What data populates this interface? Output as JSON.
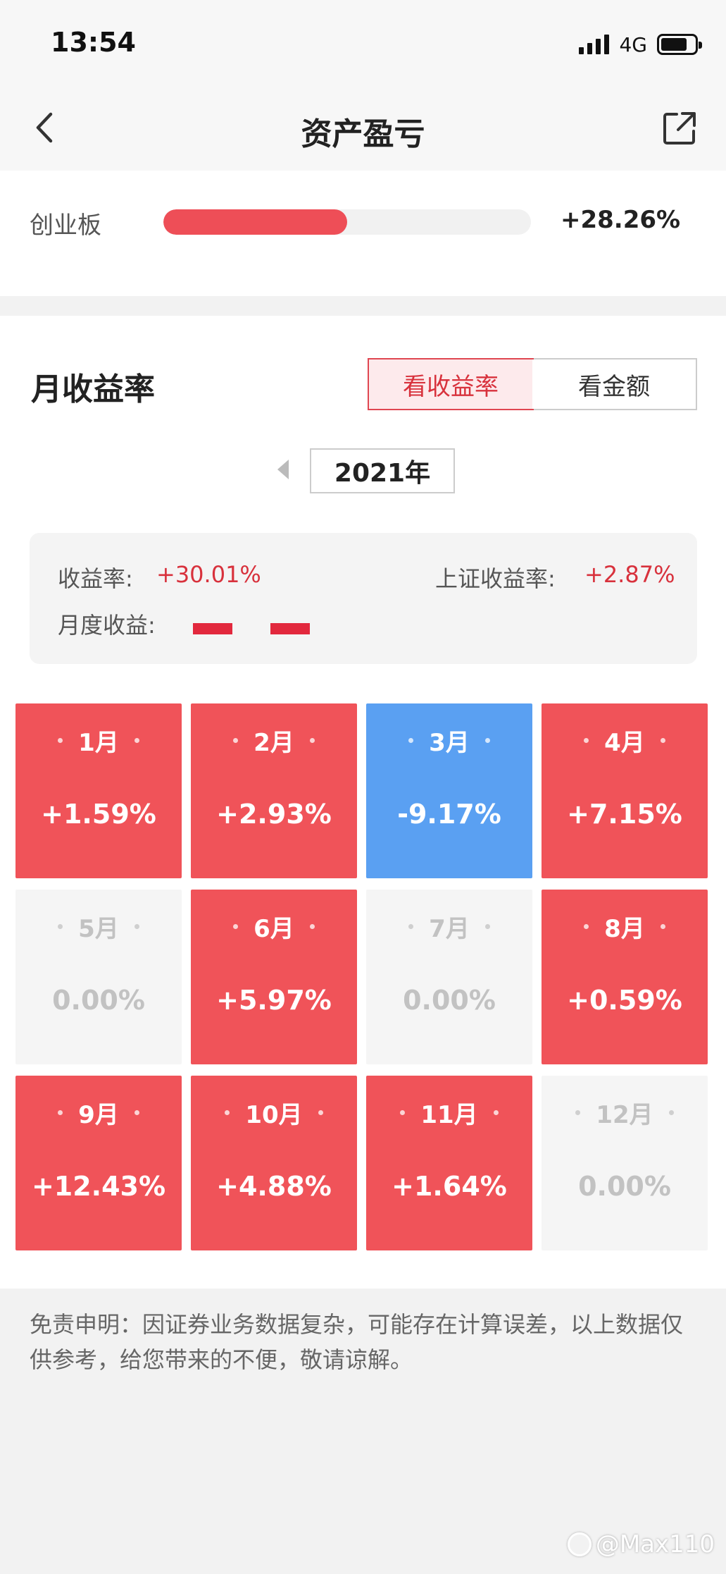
{
  "status": {
    "time": "13:54",
    "network": "4G"
  },
  "nav": {
    "title": "资产盈亏",
    "back_icon": "chevron-left-icon",
    "share_icon": "share-icon"
  },
  "index_compare": {
    "name": "创业板",
    "value": "+28.26%",
    "fill_fraction": 0.5
  },
  "monthly": {
    "title": "月收益率",
    "toggle": [
      {
        "label": "看收益率",
        "active": true
      },
      {
        "label": "看金额",
        "active": false
      }
    ],
    "year": "2021年",
    "summary": {
      "return_label": "收益率:",
      "return_value": "+30.01%",
      "sh_label": "上证收益率:",
      "sh_value": "+2.87%",
      "monthly_label": "月度收益:"
    },
    "months": [
      {
        "label": "1月",
        "value": "+1.59%",
        "state": "up"
      },
      {
        "label": "2月",
        "value": "+2.93%",
        "state": "up"
      },
      {
        "label": "3月",
        "value": "-9.17%",
        "state": "down"
      },
      {
        "label": "4月",
        "value": "+7.15%",
        "state": "up"
      },
      {
        "label": "5月",
        "value": "0.00%",
        "state": "flat"
      },
      {
        "label": "6月",
        "value": "+5.97%",
        "state": "up"
      },
      {
        "label": "7月",
        "value": "0.00%",
        "state": "flat"
      },
      {
        "label": "8月",
        "value": "+0.59%",
        "state": "up"
      },
      {
        "label": "9月",
        "value": "+12.43%",
        "state": "up"
      },
      {
        "label": "10月",
        "value": "+4.88%",
        "state": "up"
      },
      {
        "label": "11月",
        "value": "+1.64%",
        "state": "up"
      },
      {
        "label": "12月",
        "value": "0.00%",
        "state": "flat"
      }
    ]
  },
  "disclaimer": "免责申明：因证券业务数据复杂，可能存在计算误差，以上数据仅供参考，给您带来的不便，敬请谅解。",
  "watermark": "@Max110",
  "colors": {
    "up": "#f05359",
    "down": "#5aa0f2",
    "flat": "#f5f5f5",
    "accent": "#d8313c"
  }
}
